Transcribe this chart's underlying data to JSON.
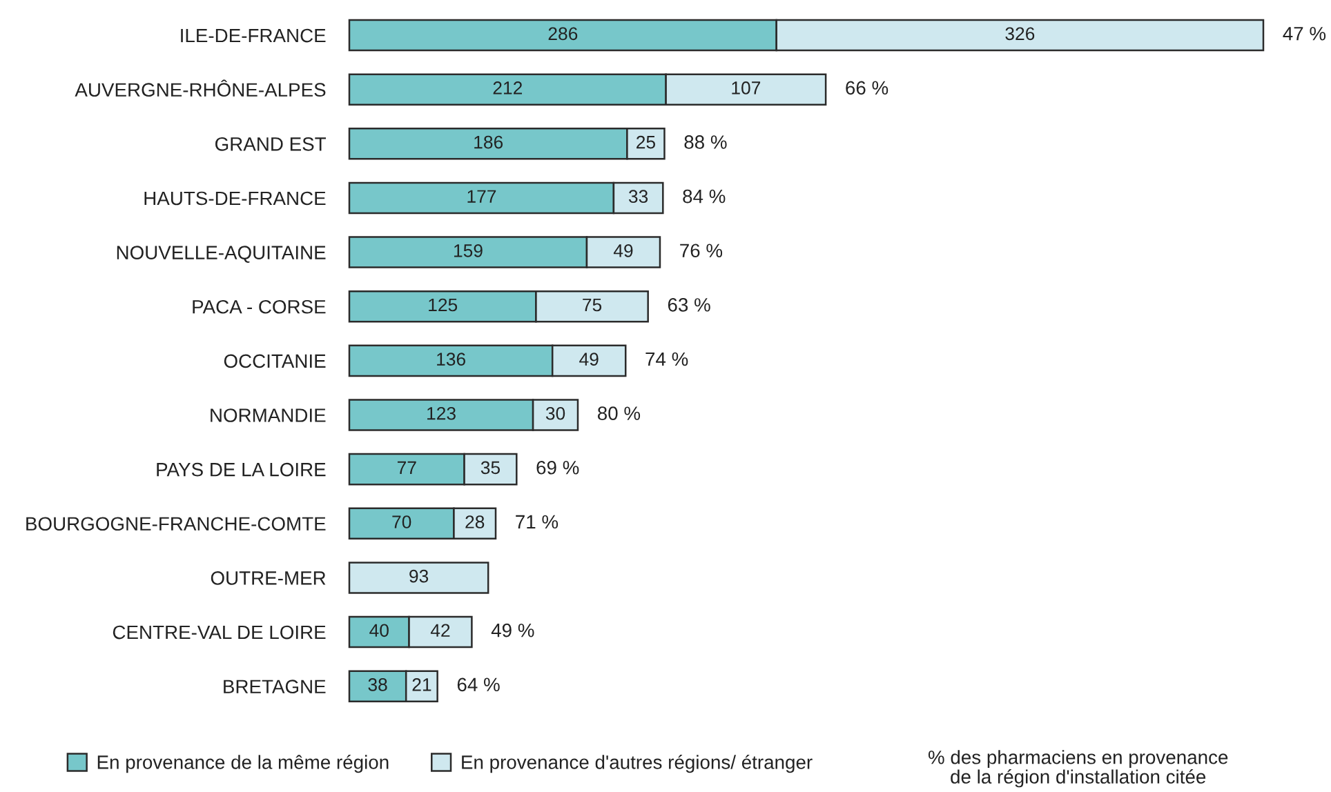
{
  "chart_data": {
    "type": "bar",
    "orientation": "horizontal",
    "stacked": true,
    "data_labels": true,
    "legend": "bottom",
    "categories": [
      "ILE-DE-FRANCE",
      "AUVERGNE-RHÔNE-ALPES",
      "GRAND EST",
      "HAUTS-DE-FRANCE",
      "NOUVELLE-AQUITAINE",
      "PACA - CORSE",
      "OCCITANIE",
      "NORMANDIE",
      "PAYS DE LA LOIRE",
      "BOURGOGNE-FRANCHE-COMTE",
      "OUTRE-MER",
      "CENTRE-VAL DE LOIRE",
      "BRETAGNE"
    ],
    "series": [
      {
        "name": "En provenance de la même région",
        "color": "#77c7ca",
        "values": [
          286,
          212,
          186,
          177,
          159,
          125,
          136,
          123,
          77,
          70,
          null,
          40,
          38
        ]
      },
      {
        "name": "En provenance d'autres régions/ étranger",
        "color": "#cfe8ef",
        "values": [
          326,
          107,
          25,
          33,
          49,
          75,
          49,
          30,
          35,
          28,
          93,
          42,
          21
        ]
      }
    ],
    "annotations": [
      {
        "text": "47 %",
        "x": 612,
        "y": "ILE-DE-FRANCE"
      },
      {
        "text": "66 %",
        "x": 319,
        "y": "AUVERGNE-RHÔNE-ALPES"
      },
      {
        "text": "88 %",
        "x": 211,
        "y": "GRAND EST"
      },
      {
        "text": "84 %",
        "x": 210,
        "y": "HAUTS-DE-FRANCE"
      },
      {
        "text": "76 %",
        "x": 208,
        "y": "NOUVELLE-AQUITAINE"
      },
      {
        "text": "63 %",
        "x": 200,
        "y": "PACA - CORSE"
      },
      {
        "text": "74 %",
        "x": 185,
        "y": "OCCITANIE"
      },
      {
        "text": "80 %",
        "x": 153,
        "y": "NORMANDIE"
      },
      {
        "text": "69 %",
        "x": 112,
        "y": "PAYS DE LA LOIRE"
      },
      {
        "text": "71 %",
        "x": 98,
        "y": "BOURGOGNE-FRANCHE-COMTE"
      },
      {
        "text": "49 %",
        "x": 82,
        "y": "CENTRE-VAL DE LOIRE"
      },
      {
        "text": "64 %",
        "x": 59,
        "y": "BRETAGNE"
      },
      "% des pharmaciens en provenance\nde la région d'installation citée"
    ]
  }
}
